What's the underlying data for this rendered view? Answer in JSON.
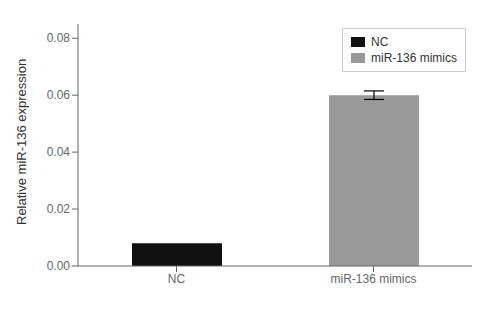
{
  "chart_data": {
    "type": "bar",
    "categories": [
      "NC",
      "miR-136 mimics"
    ],
    "values": [
      0.008,
      0.06
    ],
    "colors": [
      "#111111",
      "#999999"
    ],
    "errors": [
      null,
      0.0015
    ],
    "ylabel": "Relative miR-136 expression",
    "ylim": [
      0,
      0.085
    ],
    "yticks": [
      {
        "value": 0,
        "label": "0.00"
      },
      {
        "value": 0.02,
        "label": "0.02"
      },
      {
        "value": 0.04,
        "label": "0.04"
      },
      {
        "value": 0.06,
        "label": "0.06"
      },
      {
        "value": 0.08,
        "label": "0.08"
      }
    ],
    "grid": false,
    "legend": "upper right"
  }
}
